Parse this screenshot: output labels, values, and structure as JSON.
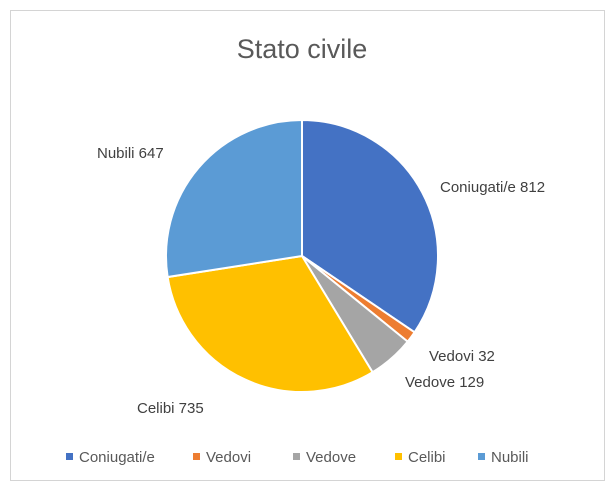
{
  "chart_data": {
    "type": "pie",
    "title": "Stato civile",
    "categories": [
      "Coniugati/e",
      "Vedovi",
      "Vedove",
      "Celibi",
      "Nubili"
    ],
    "values": [
      812,
      32,
      129,
      735,
      647
    ],
    "colors": [
      "#4472C4",
      "#ED7D31",
      "#A5A5A5",
      "#FFC000",
      "#5B9BD5"
    ],
    "data_labels": [
      "Coniugati/e 812",
      "Vedovi 32",
      "Vedove 129",
      "Celibi 735",
      "Nubili 647"
    ],
    "start_angle_deg": 0,
    "direction": "clockwise",
    "legend_position": "bottom",
    "grid": false
  }
}
